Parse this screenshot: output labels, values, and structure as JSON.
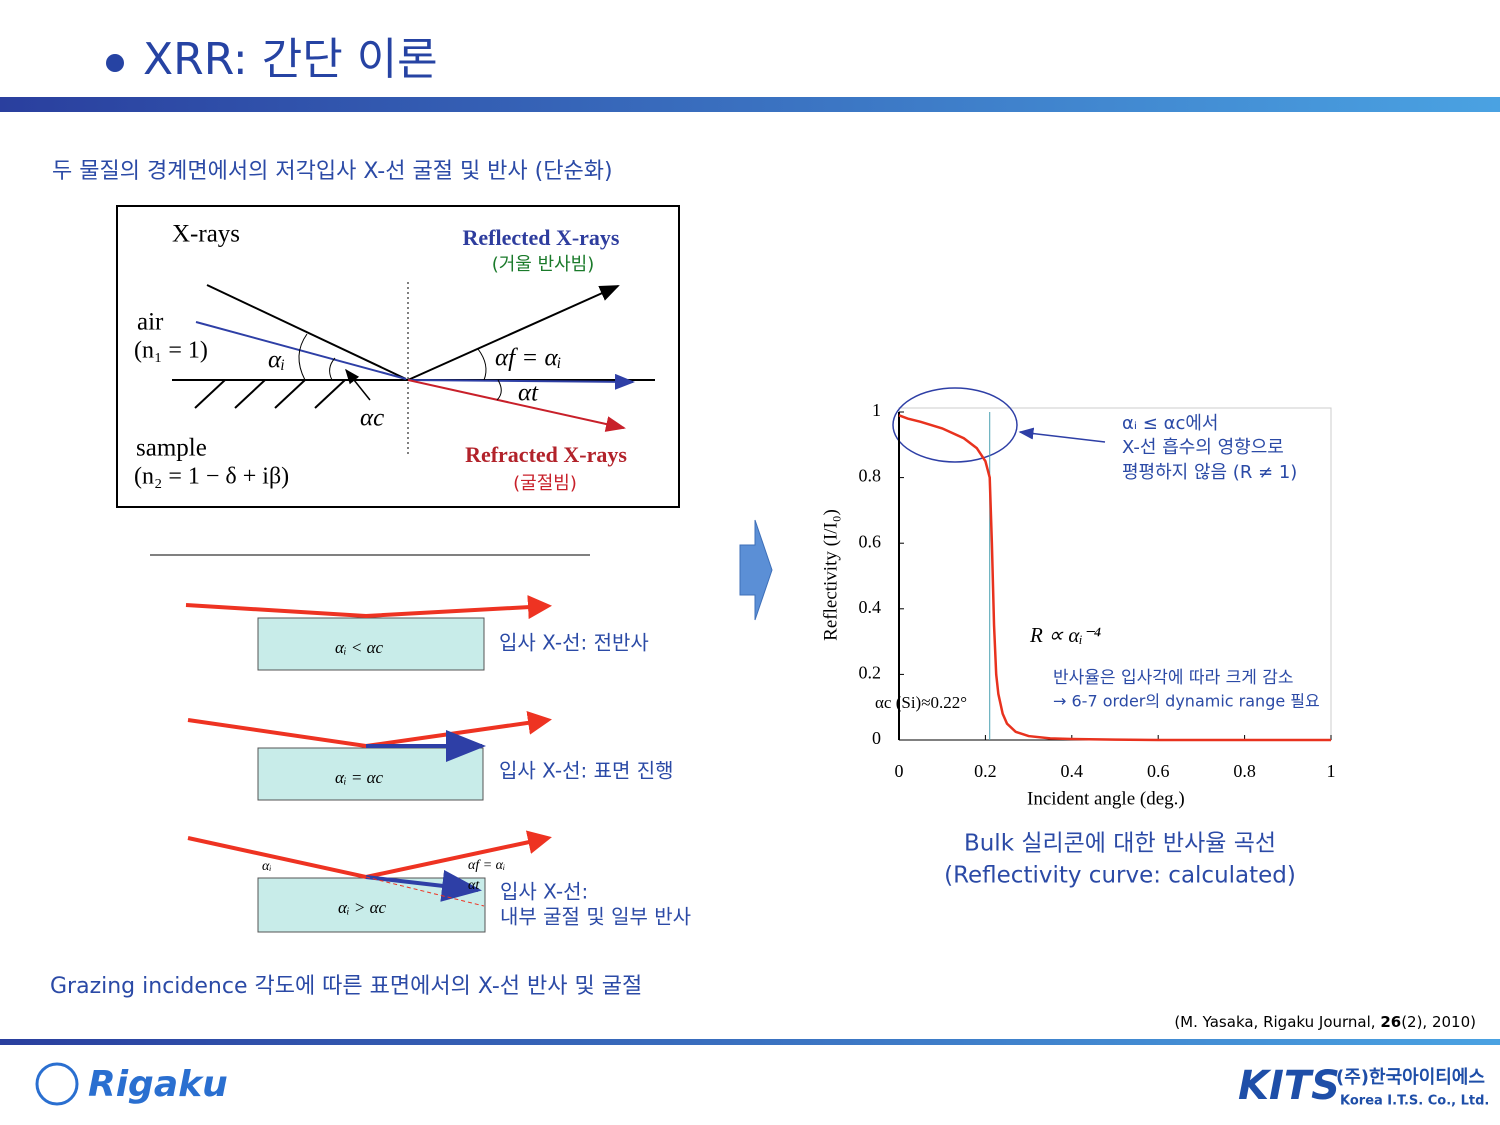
{
  "header": {
    "title": "XRR: 간단 이론"
  },
  "subtitle": "두 물질의 경계면에서의 저각입사 X-선 굴절 및 반사 (단순화)",
  "diagram": {
    "xrays": "X-rays",
    "reflected": "Reflected X-rays",
    "reflected_note": "(거울 반사빔)",
    "air": "air",
    "air_index": "(n₁ = 1)",
    "alpha_i": "αᵢ",
    "alpha_f": "αf = αᵢ",
    "alpha_t": "αt",
    "alpha_c": "αc",
    "sample": "sample",
    "sample_index": "(n₂ = 1 − δ + iβ)",
    "refracted": "Refracted X-rays",
    "refracted_note": "(굴절빔)"
  },
  "cases": [
    {
      "condition": "αᵢ < αc",
      "label": "입사 X-선: 전반사"
    },
    {
      "condition": "αᵢ = αc",
      "label": "입사 X-선: 표면 진행"
    },
    {
      "condition": "αᵢ > αc",
      "label": "입사 X-선:",
      "label2": "내부 굴절 및 일부 반사",
      "alpha_i": "αᵢ",
      "alpha_f": "αf = αᵢ",
      "alpha_t": "αt"
    }
  ],
  "caption": "Grazing incidence 각도에 따른 표면에서의 X-선 반사 및 굴절",
  "chart_data": {
    "type": "line",
    "x": [
      0,
      0.02,
      0.05,
      0.1,
      0.15,
      0.18,
      0.2,
      0.21,
      0.215,
      0.22,
      0.225,
      0.23,
      0.24,
      0.25,
      0.27,
      0.3,
      0.35,
      0.4,
      0.5,
      0.6,
      0.8,
      1
    ],
    "values": [
      0.99,
      0.98,
      0.97,
      0.95,
      0.92,
      0.89,
      0.85,
      0.8,
      0.6,
      0.35,
      0.2,
      0.14,
      0.08,
      0.05,
      0.025,
      0.012,
      0.005,
      0.003,
      0.001,
      0,
      0,
      0
    ],
    "color": "#e8321e",
    "critical_x": 0.21,
    "xlim": [
      0,
      1
    ],
    "ylim": [
      0,
      1
    ],
    "xticks": [
      0,
      0.2,
      0.4,
      0.6,
      0.8,
      1
    ],
    "yticks": [
      0,
      0.2,
      0.4,
      0.6,
      0.8,
      1
    ],
    "xlabel": "Incident angle (deg.)",
    "ylabel": "Reflectivity (I/I₀)",
    "annotations": {
      "note1": "αᵢ ≤ αc에서",
      "note2": "X-선 흡수의 영향으로",
      "note3": "평평하지 않음 (R ≠ 1)",
      "law": "R ∝ αᵢ⁻⁴",
      "drop1": "반사율은 입사각에 따라 크게 감소",
      "drop2": "→ 6-7 order의 dynamic range 필요",
      "critical": "αc (Si)≈0.22°"
    },
    "caption1": "Bulk 실리콘에 대한 반사율 곡선",
    "caption2": "(Reflectivity curve: calculated)"
  },
  "citation": {
    "pre": "(M. Yasaka, Rigaku Journal, ",
    "volume": "26",
    "post": "(2), 2010)"
  },
  "footer": {
    "rigaku": "Rigaku",
    "kits": "KITS",
    "kits_kr": "(주)한국아이티에스",
    "kits_en": "Korea I.T.S. Co., Ltd."
  }
}
